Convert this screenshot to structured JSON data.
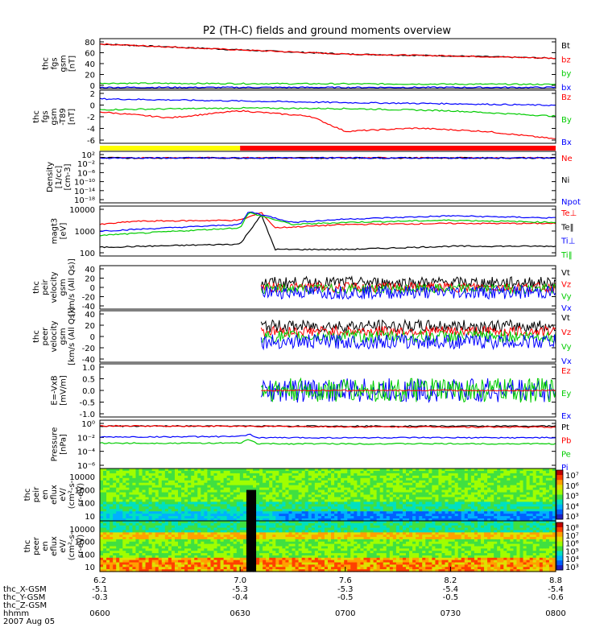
{
  "chart_data": {
    "type": "line",
    "title": "P2 (TH-C) fields and ground moments overview",
    "panels": [
      {
        "ylabel": [
          "thc",
          "fgs",
          "gsm",
          "[nT]"
        ],
        "yscale": "linear",
        "yticks": [
          "80",
          "60",
          "40",
          "20",
          "0"
        ],
        "ylim": [
          0,
          84
        ],
        "legend": [
          "Bt",
          "bz",
          "by",
          "bx"
        ],
        "series": [
          {
            "name": "Bt",
            "color": "#000000",
            "x": [
              6.2,
              7.0,
              7.6,
              8.2,
              8.8
            ],
            "values": [
              75,
              65,
              58,
              55,
              51
            ]
          },
          {
            "name": "bz",
            "color": "#ff0000",
            "x": [
              6.2,
              7.0,
              7.6,
              8.2,
              8.8
            ],
            "values": [
              75,
              65,
              58,
              55,
              51
            ]
          },
          {
            "name": "by",
            "color": "#00cc00",
            "x": [
              6.2,
              8.8
            ],
            "values": [
              9,
              7
            ]
          },
          {
            "name": "bx",
            "color": "#0000ff",
            "x": [
              6.2,
              8.8
            ],
            "values": [
              2,
              2
            ]
          }
        ]
      },
      {
        "ylabel": [
          "thc",
          "fgs",
          "gsm",
          "-T89",
          "[nT]"
        ],
        "yscale": "linear",
        "yticks": [
          "2",
          "0",
          "-2",
          "-4",
          "-6"
        ],
        "ylim": [
          -7,
          2.8
        ],
        "legend": [
          "Bz",
          "By",
          "Bx"
        ],
        "series": [
          {
            "name": "Bz",
            "color": "#ff0000",
            "x": [
              6.2,
              6.6,
              7.0,
              7.4,
              7.6,
              8.0,
              8.4,
              8.6,
              8.8
            ],
            "values": [
              -1.2,
              -2.3,
              -1.0,
              -2.0,
              -4.8,
              -4.2,
              -4.8,
              -5.5,
              -6.2
            ]
          },
          {
            "name": "By",
            "color": "#00cc00",
            "x": [
              6.2,
              7.0,
              7.6,
              8.2,
              8.8
            ],
            "values": [
              -0.8,
              -0.5,
              -0.6,
              -1.0,
              -2.0
            ]
          },
          {
            "name": "Bx",
            "color": "#0000ff",
            "x": [
              6.2,
              7.0,
              7.6,
              8.2,
              8.8
            ],
            "values": [
              1.2,
              0.8,
              0.5,
              0.3,
              0.0
            ]
          }
        ]
      },
      {
        "ylabel": [
          "Density",
          "[1/cc]",
          "[cm-3]"
        ],
        "yscale": "log",
        "yticks": [
          "10²",
          "10⁻²",
          "10⁻⁶",
          "10⁻¹⁰",
          "10⁻¹⁴",
          "10⁻¹⁸"
        ],
        "ylim": [
          -18,
          3
        ],
        "legend": [
          "Ne",
          "Ni",
          "Npot"
        ],
        "series": [
          {
            "name": "Ne",
            "color": "#ff0000",
            "x": [
              6.2,
              8.8
            ],
            "values": [
              0.35,
              0.35
            ]
          },
          {
            "name": "Ni",
            "color": "#000000",
            "x": [
              6.2,
              8.8
            ],
            "values": [
              0.3,
              0.3
            ]
          },
          {
            "name": "Npot",
            "color": "#0000ff",
            "x": [
              6.2,
              8.8
            ],
            "values": [
              0.3,
              0.3
            ]
          }
        ]
      },
      {
        "ylabel": [
          "magt3",
          "[eV]"
        ],
        "yscale": "log",
        "yticks": [
          "10000",
          "1000",
          "100"
        ],
        "ylim": [
          1.8,
          4.1
        ],
        "legend": [
          "Te⊥",
          "Te‖",
          "Ti⊥",
          "Ti‖"
        ],
        "series": [
          {
            "name": "Te⊥",
            "color": "#ff0000",
            "x": [
              6.2,
              6.4,
              7.0,
              7.12,
              7.2,
              7.6,
              8.2,
              8.8
            ],
            "values": [
              3.25,
              3.4,
              3.45,
              3.8,
              3.1,
              3.25,
              3.3,
              3.3
            ]
          },
          {
            "name": "Te‖",
            "color": "#000000",
            "x": [
              6.2,
              7.0,
              7.12,
              7.2,
              7.6,
              8.2,
              8.8
            ],
            "values": [
              2.2,
              2.35,
              3.7,
              2.1,
              2.1,
              2.25,
              2.25
            ]
          },
          {
            "name": "Ti⊥",
            "color": "#0000ff",
            "x": [
              6.2,
              7.0,
              7.05,
              7.3,
              7.6,
              8.2,
              8.8
            ],
            "values": [
              2.95,
              3.25,
              3.85,
              3.35,
              3.5,
              3.65,
              3.55
            ]
          },
          {
            "name": "Ti‖",
            "color": "#00cc00",
            "x": [
              6.2,
              7.0,
              7.05,
              7.3,
              7.6,
              8.2,
              8.8
            ],
            "values": [
              2.75,
              3.1,
              3.8,
              3.25,
              3.35,
              3.45,
              3.35
            ]
          }
        ]
      },
      {
        "ylabel": [
          "thc",
          "peir",
          "velocity",
          "gsm",
          "[km/s (All Qs)]"
        ],
        "yscale": "linear",
        "yticks": [
          "40",
          "20",
          "0",
          "-20",
          "-40"
        ],
        "ylim": [
          -40,
          50
        ],
        "legend": [
          "Vt",
          "Vz",
          "Vy",
          "Vx"
        ],
        "x_start": 7.12,
        "series": [
          {
            "name": "Vt",
            "color": "#000000",
            "mean": 15,
            "spread": 12
          },
          {
            "name": "Vz",
            "color": "#ff0000",
            "mean": 5,
            "spread": 10
          },
          {
            "name": "Vy",
            "color": "#00cc00",
            "mean": 2,
            "spread": 10
          },
          {
            "name": "Vx",
            "color": "#0000ff",
            "mean": -5,
            "spread": 14
          }
        ]
      },
      {
        "ylabel": [
          "thc",
          "peer",
          "velocity",
          "gsm",
          "[km/s (All Qs)]"
        ],
        "yscale": "linear",
        "yticks": [
          "40",
          "20",
          "0",
          "-20",
          "-40"
        ],
        "ylim": [
          -50,
          50
        ],
        "legend": [
          "Vt",
          "Vz",
          "Vy",
          "Vx"
        ],
        "x_start": 7.12,
        "series": [
          {
            "name": "Vt",
            "color": "#000000",
            "mean": 20,
            "spread": 12
          },
          {
            "name": "Vz",
            "color": "#ff0000",
            "mean": 10,
            "spread": 10
          },
          {
            "name": "Vy",
            "color": "#00cc00",
            "mean": 0,
            "spread": 12
          },
          {
            "name": "Vx",
            "color": "#0000ff",
            "mean": -10,
            "spread": 14
          }
        ]
      },
      {
        "ylabel": [
          "E=-VxB",
          "[mV/m]"
        ],
        "yscale": "linear",
        "yticks": [
          "1.0",
          "0.5",
          "0.0",
          "-0.5",
          "-1.0"
        ],
        "ylim": [
          -1.2,
          1.2
        ],
        "legend": [
          "Ez",
          "Ey",
          "Ex"
        ],
        "x_start": 7.12,
        "series": [
          {
            "name": "Ex",
            "color": "#0000ff",
            "mean": 0,
            "spread": 0.55
          },
          {
            "name": "Ey",
            "color": "#00cc00",
            "mean": 0,
            "spread": 0.55
          },
          {
            "name": "Ez",
            "color": "#ff0000",
            "mean": 0,
            "spread": 0.03
          }
        ]
      },
      {
        "ylabel": [
          "Pressure",
          "[nPa]"
        ],
        "yscale": "log",
        "yticks": [
          "10⁰",
          "10⁻²",
          "10⁻⁴",
          "10⁻⁶"
        ],
        "ylim": [
          -6.6,
          1.4
        ],
        "legend": [
          "Pt",
          "Pb",
          "Pe",
          "Pi"
        ],
        "series": [
          {
            "name": "Pt",
            "color": "#000000",
            "x": [
              6.2,
              8.8
            ],
            "values": [
              0.42,
              0.42
            ]
          },
          {
            "name": "Pb",
            "color": "#ff0000",
            "x": [
              6.2,
              7.0,
              7.6,
              8.2,
              8.8
            ],
            "values": [
              0.45,
              0.4,
              0.3,
              0.28,
              0.25
            ]
          },
          {
            "name": "Pe",
            "color": "#00cc00",
            "x": [
              6.2,
              7.0,
              7.05,
              7.1,
              8.8
            ],
            "values": [
              -2.4,
              -2.4,
              -1.8,
              -2.5,
              -2.5
            ]
          },
          {
            "name": "Pi",
            "color": "#0000ff",
            "x": [
              6.2,
              7.0,
              7.05,
              7.1,
              8.8
            ],
            "values": [
              -1.4,
              -1.3,
              -0.9,
              -1.5,
              -1.5
            ]
          }
        ]
      },
      {
        "ylabel": [
          "thc",
          "peir",
          "en",
          "eflux",
          "eV/",
          "(cm²-s-",
          "sr-eV)"
        ],
        "yscale": "log",
        "yticks": [
          "10000",
          "1000",
          "100",
          "10"
        ],
        "colorbar_ticks": [
          "10⁷",
          "10⁶",
          "10⁵",
          "10⁴",
          "10³"
        ],
        "type": "heatmap"
      },
      {
        "ylabel": [
          "thc",
          "peer",
          "en",
          "eflux",
          "eV/",
          "(cm²-s-",
          "sr-eV)"
        ],
        "yscale": "log",
        "yticks": [
          "10000",
          "1000",
          "100",
          "10"
        ],
        "colorbar_ticks": [
          "10⁸",
          "10⁷",
          "10⁶",
          "10⁵",
          "10⁴",
          "10³"
        ],
        "type": "heatmap"
      }
    ],
    "xaxis": {
      "ticks": [
        "6.2",
        "7.0",
        "7.6",
        "8.2",
        "8.8"
      ],
      "x_values": [
        6.2,
        7.0,
        7.6,
        8.2,
        8.8
      ],
      "extra_rows": [
        {
          "label": "thc_X-GSM",
          "values": [
            "-5.1",
            "-5.3",
            "-5.3",
            "-5.4",
            "-5.4"
          ]
        },
        {
          "label": "thc_Y-GSM",
          "values": [
            "-0.3",
            "-0.4",
            "-0.5",
            "-0.5",
            "-0.6"
          ]
        },
        {
          "label": "thc_Z-GSM",
          "values": [
            "",
            "",
            "",
            "",
            ""
          ]
        },
        {
          "label": "hhmm",
          "values": [
            "0600",
            "0630",
            "0700",
            "0730",
            "0800"
          ]
        }
      ],
      "date": "2007 Aug 05"
    },
    "status_bar": {
      "segments": [
        {
          "x0": 6.2,
          "x1": 7.0,
          "color": "#ffff00"
        },
        {
          "x0": 7.0,
          "x1": 8.8,
          "color": "#ff0000"
        }
      ]
    }
  }
}
